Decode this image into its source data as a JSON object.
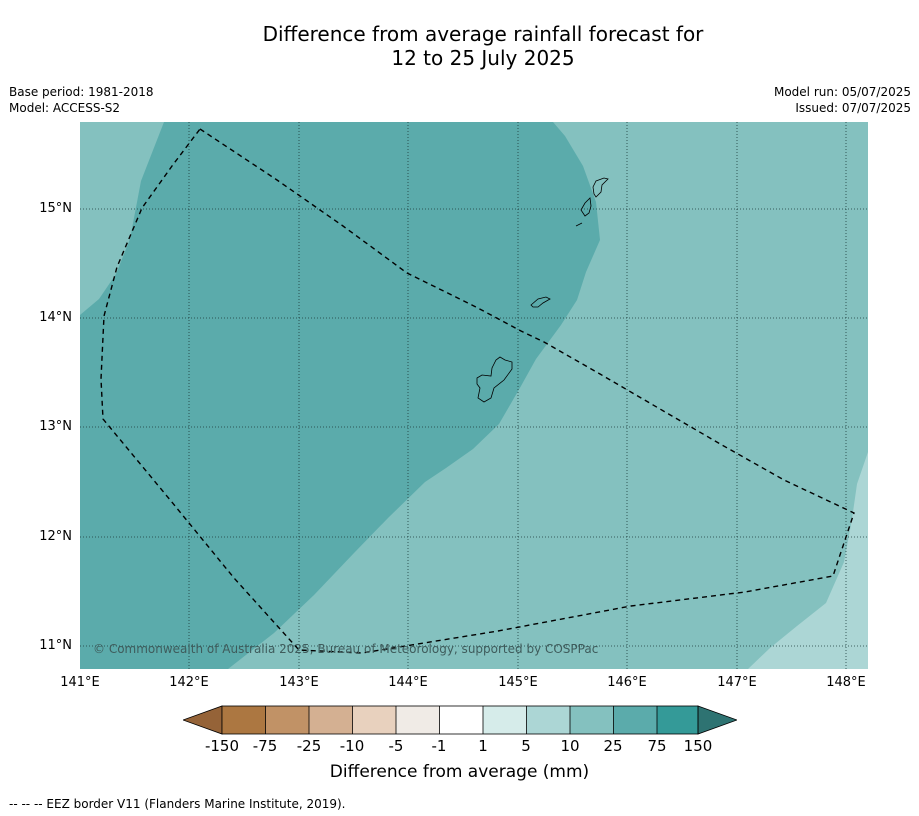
{
  "title": {
    "line1": "Difference from average rainfall forecast for",
    "line2": "12 to 25 July 2025"
  },
  "meta": {
    "base_period": "Base period: 1981-2018",
    "model": "Model: ACCESS-S2",
    "model_run": "Model run: 05/07/2025",
    "issued": "Issued: 07/07/2025"
  },
  "axes": {
    "lat_labels": [
      "15°N",
      "14°N",
      "13°N",
      "12°N",
      "11°N"
    ],
    "lon_labels": [
      "141°E",
      "142°E",
      "143°E",
      "144°E",
      "145°E",
      "146°E",
      "147°E",
      "148°E"
    ],
    "lat_range": [
      10.8,
      15.8
    ],
    "lon_range": [
      141.0,
      148.2
    ],
    "grid": true
  },
  "colors": {
    "band_25_75": "#5babab",
    "band_10_25": "#84c1bf",
    "band_5_10": "#acd6d5",
    "grid": "#1c3b3b",
    "eez": "#000000"
  },
  "copyright": "© Commonwealth of Australia 2025, Bureau of Meteorology, supported by COSPPac",
  "colorbar": {
    "label": "Difference from average (mm)",
    "ticks": [
      "-150",
      "-75",
      "-25",
      "-10",
      "-5",
      "-1",
      "1",
      "5",
      "10",
      "25",
      "75",
      "150"
    ],
    "colors": [
      "#ac7741",
      "#c19266",
      "#d4b092",
      "#e8d1be",
      "#f0ebe6",
      "#ffffff",
      "#d6ecea",
      "#acd6d5",
      "#84c1bf",
      "#5babab",
      "#349a98"
    ],
    "extend_low": "#956338",
    "extend_high": "#2e7372"
  },
  "footnote": "--  --  -- EEZ border V11 (Flanders Marine Institute, 2019)."
}
